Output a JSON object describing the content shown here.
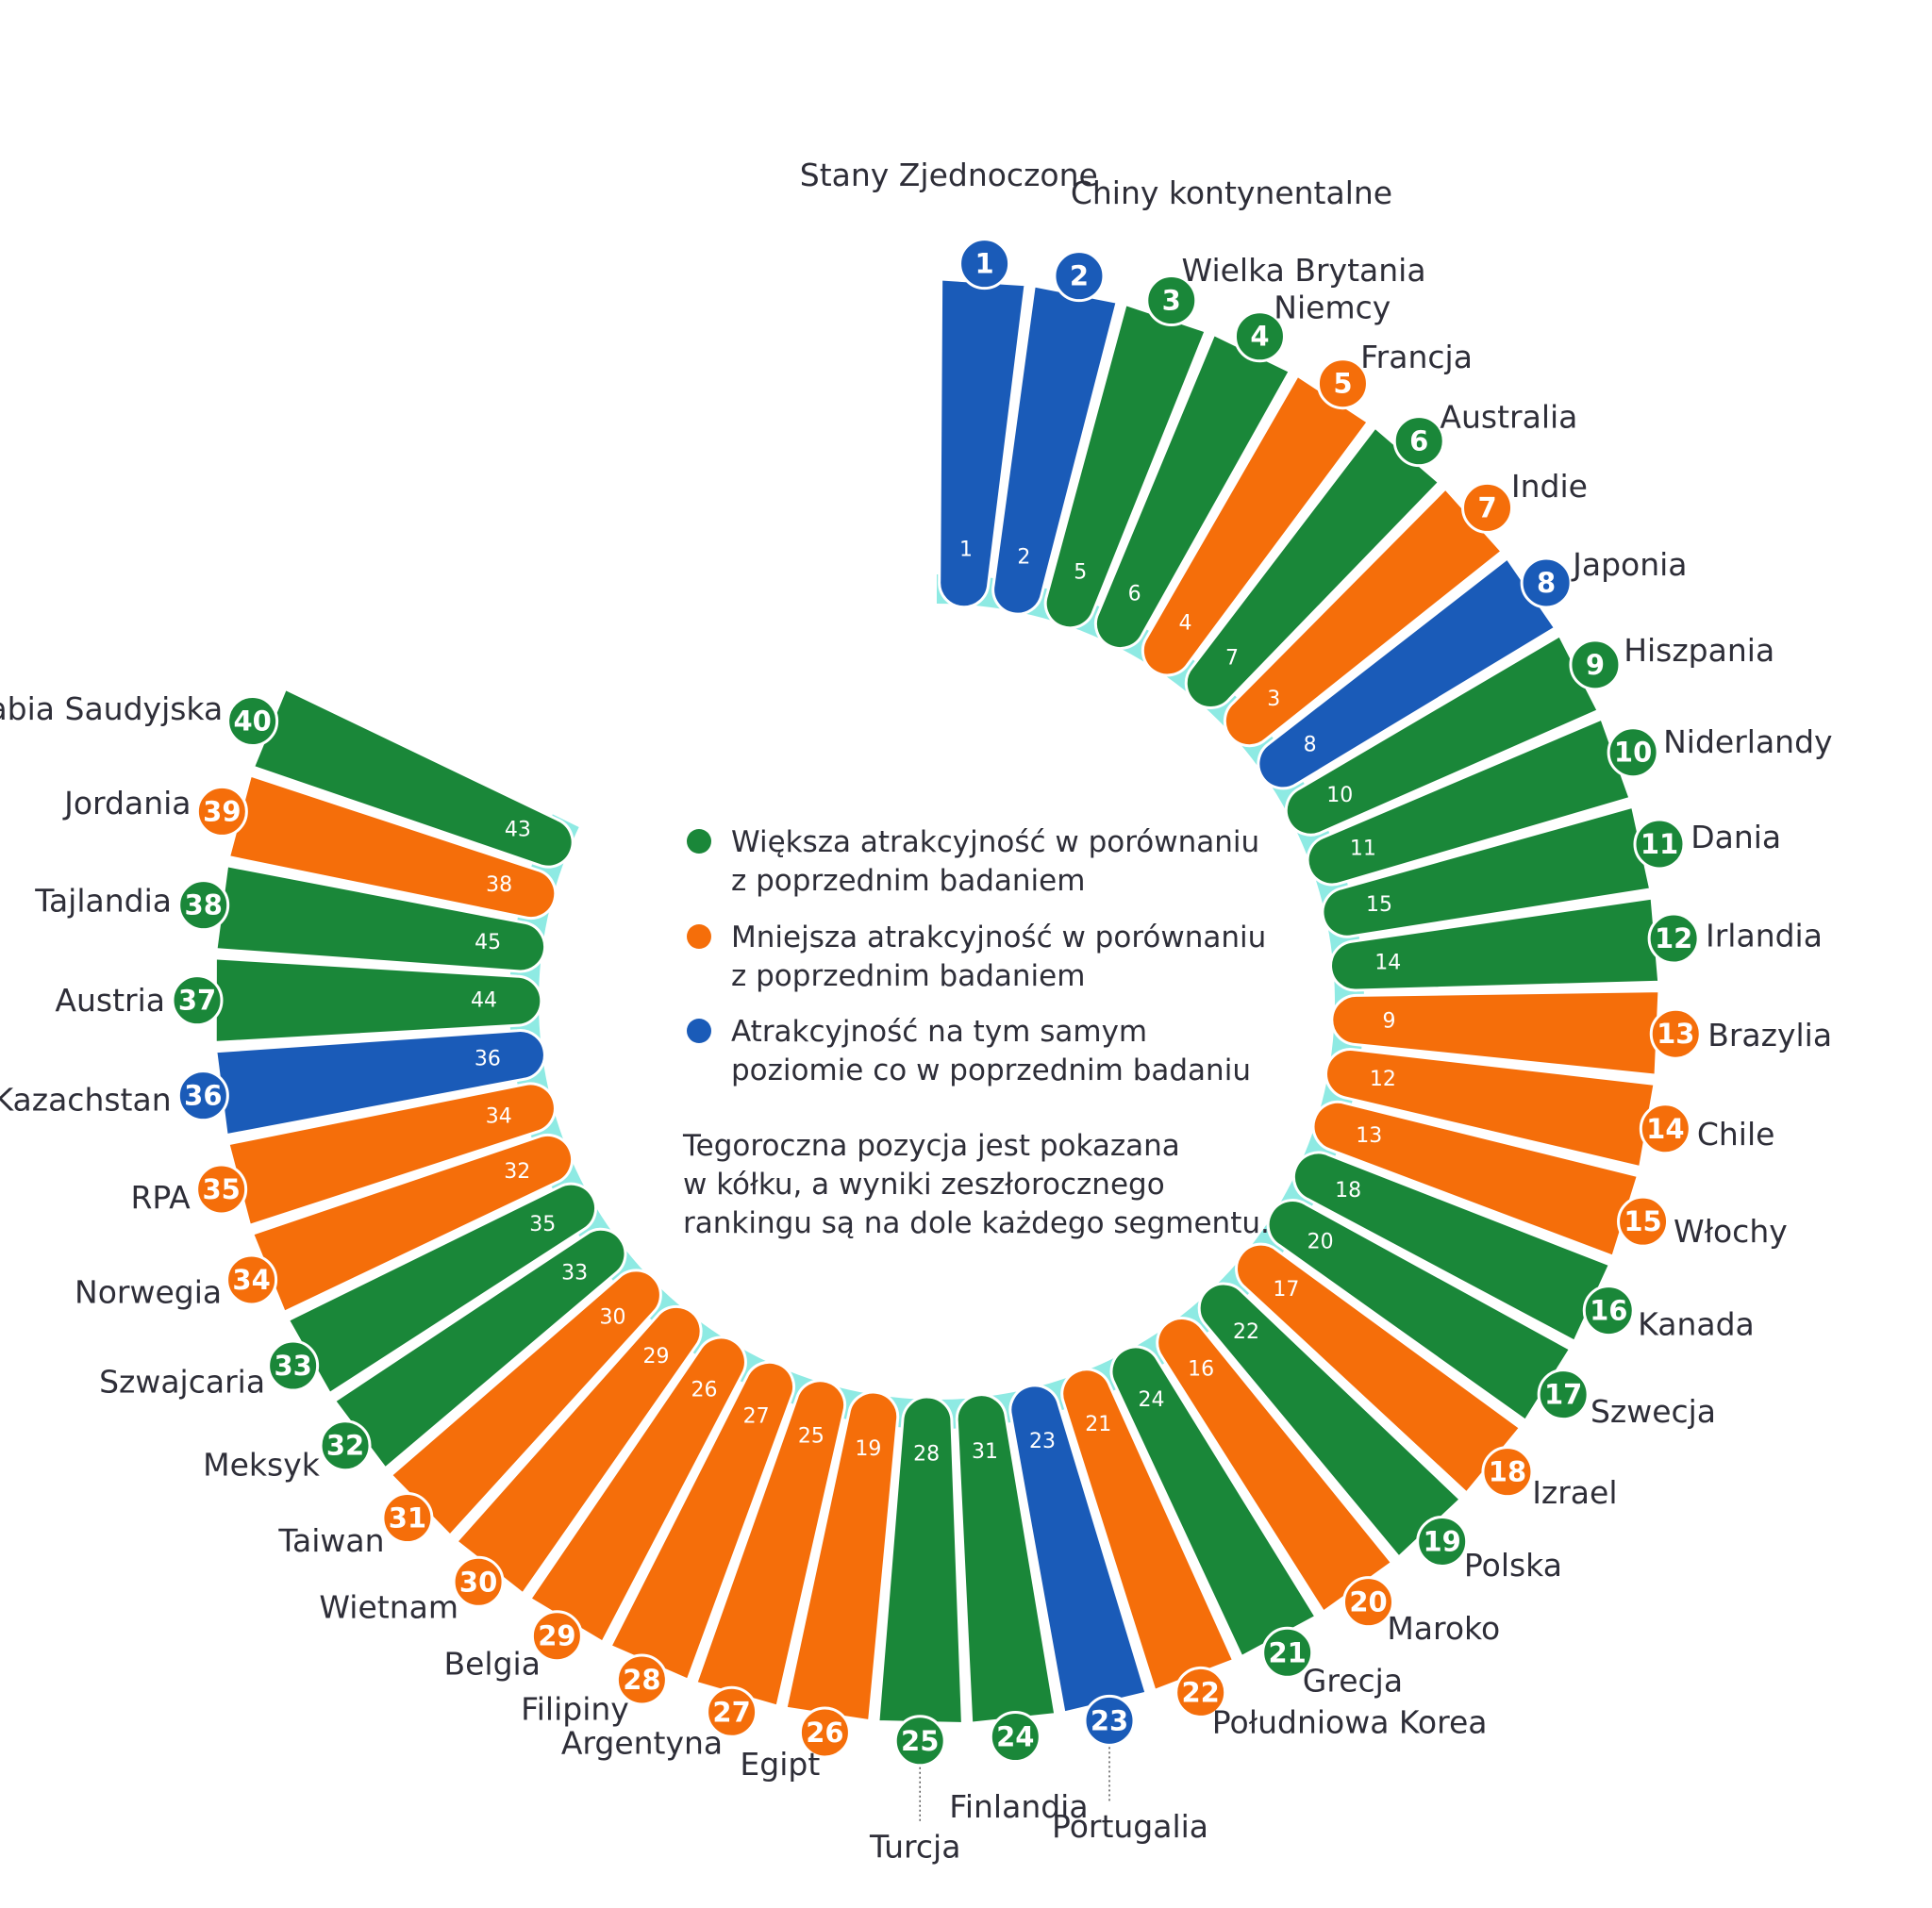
{
  "colors": {
    "green": "#1a8739",
    "orange": "#f56e0a",
    "blue": "#1a5bb8",
    "ring": "#8eeae3"
  },
  "legend": [
    {
      "status": "up",
      "lines": [
        "Większa atrakcyjność w porównaniu",
        "z poprzednim badaniem"
      ]
    },
    {
      "status": "down",
      "lines": [
        "Mniejsza atrakcyjność w porównaniu",
        "z poprzednim badaniem"
      ]
    },
    {
      "status": "same",
      "lines": [
        "Atrakcyjność na tym samym",
        "poziomie co w poprzednim badaniu"
      ]
    }
  ],
  "note": [
    "Tegoroczna pozycja jest pokazana",
    "w kółku, a wyniki zeszłorocznego",
    "rankingu są na dole każdego segmentu."
  ],
  "chart_data": {
    "type": "radial-bar",
    "series": [
      {
        "name": "Tegoroczna pozycja",
        "field": "rank"
      },
      {
        "name": "Wyniki zeszłorocznego rankingu",
        "field": "prev"
      }
    ],
    "countries": [
      {
        "rank": 1,
        "name": "Stany Zjednoczone",
        "prev": 1,
        "status": "same"
      },
      {
        "rank": 2,
        "name": "Chiny kontynentalne",
        "prev": 2,
        "status": "same"
      },
      {
        "rank": 3,
        "name": "Wielka Brytania",
        "prev": 5,
        "status": "up"
      },
      {
        "rank": 4,
        "name": "Niemcy",
        "prev": 6,
        "status": "up"
      },
      {
        "rank": 5,
        "name": "Francja",
        "prev": 4,
        "status": "down"
      },
      {
        "rank": 6,
        "name": "Australia",
        "prev": 7,
        "status": "up"
      },
      {
        "rank": 7,
        "name": "Indie",
        "prev": 3,
        "status": "down"
      },
      {
        "rank": 8,
        "name": "Japonia",
        "prev": 8,
        "status": "same"
      },
      {
        "rank": 9,
        "name": "Hiszpania",
        "prev": 10,
        "status": "up"
      },
      {
        "rank": 10,
        "name": "Niderlandy",
        "prev": 11,
        "status": "up"
      },
      {
        "rank": 11,
        "name": "Dania",
        "prev": 15,
        "status": "up"
      },
      {
        "rank": 12,
        "name": "Irlandia",
        "prev": 14,
        "status": "up"
      },
      {
        "rank": 13,
        "name": "Brazylia",
        "prev": 9,
        "status": "down"
      },
      {
        "rank": 14,
        "name": "Chile",
        "prev": 12,
        "status": "down"
      },
      {
        "rank": 15,
        "name": "Włochy",
        "prev": 13,
        "status": "down"
      },
      {
        "rank": 16,
        "name": "Kanada",
        "prev": 18,
        "status": "up"
      },
      {
        "rank": 17,
        "name": "Szwecja",
        "prev": 20,
        "status": "up"
      },
      {
        "rank": 18,
        "name": "Izrael",
        "prev": 17,
        "status": "down"
      },
      {
        "rank": 19,
        "name": "Polska",
        "prev": 22,
        "status": "up"
      },
      {
        "rank": 20,
        "name": "Maroko",
        "prev": 16,
        "status": "down"
      },
      {
        "rank": 21,
        "name": "Grecja",
        "prev": 24,
        "status": "up"
      },
      {
        "rank": 22,
        "name": "Południowa Korea",
        "prev": 21,
        "status": "down"
      },
      {
        "rank": 23,
        "name": "Portugalia",
        "prev": 23,
        "status": "same"
      },
      {
        "rank": 24,
        "name": "Finlandia",
        "prev": 31,
        "status": "up"
      },
      {
        "rank": 25,
        "name": "Turcja",
        "prev": 28,
        "status": "up"
      },
      {
        "rank": 26,
        "name": "Egipt",
        "prev": 19,
        "status": "down"
      },
      {
        "rank": 27,
        "name": "Argentyna",
        "prev": 25,
        "status": "down"
      },
      {
        "rank": 28,
        "name": "Filipiny",
        "prev": 27,
        "status": "down"
      },
      {
        "rank": 29,
        "name": "Belgia",
        "prev": 26,
        "status": "down"
      },
      {
        "rank": 30,
        "name": "Wietnam",
        "prev": 29,
        "status": "down"
      },
      {
        "rank": 31,
        "name": "Taiwan",
        "prev": 30,
        "status": "down"
      },
      {
        "rank": 32,
        "name": "Meksyk",
        "prev": 33,
        "status": "up"
      },
      {
        "rank": 33,
        "name": "Szwajcaria",
        "prev": 35,
        "status": "up"
      },
      {
        "rank": 34,
        "name": "Norwegia",
        "prev": 32,
        "status": "down"
      },
      {
        "rank": 35,
        "name": "RPA",
        "prev": 34,
        "status": "down"
      },
      {
        "rank": 36,
        "name": "Kazachstan",
        "prev": 36,
        "status": "same"
      },
      {
        "rank": 37,
        "name": "Austria",
        "prev": 44,
        "status": "up"
      },
      {
        "rank": 38,
        "name": "Tajlandia",
        "prev": 45,
        "status": "up"
      },
      {
        "rank": 39,
        "name": "Jordania",
        "prev": 38,
        "status": "down"
      },
      {
        "rank": 40,
        "name": "Arabia Saudyjska",
        "prev": 43,
        "status": "up"
      }
    ]
  }
}
